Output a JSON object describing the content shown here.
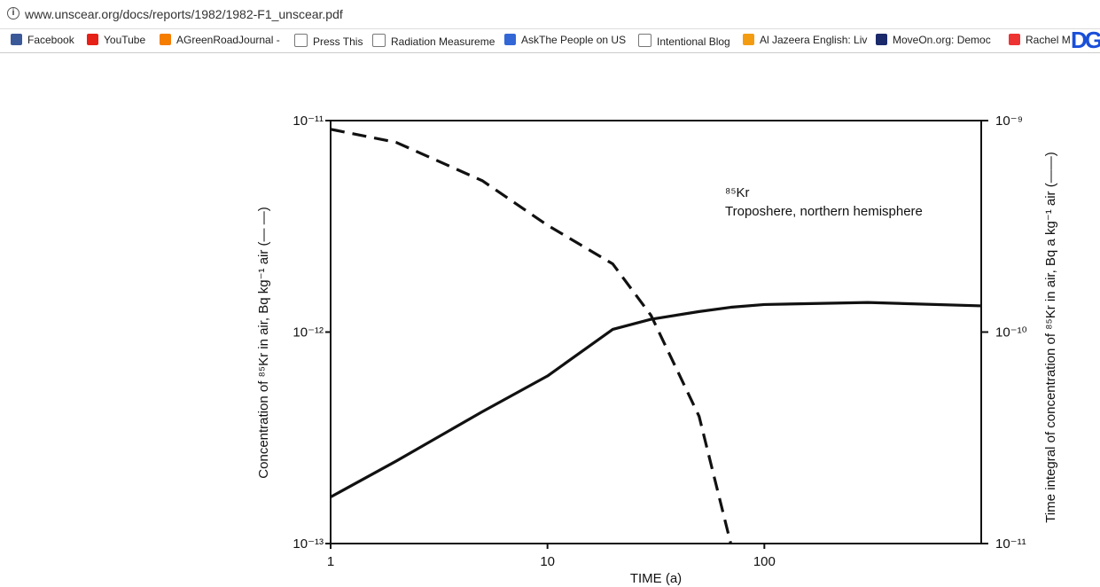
{
  "browser": {
    "url": "www.unscear.org/docs/reports/1982/1982-F1_unscear.pdf",
    "bookmarks": [
      "Facebook",
      "YouTube",
      "AGreenRoadJournal -",
      "Press This",
      "Radiation Measureme",
      "AskThe People on US",
      "Intentional Blog",
      "Al Jazeera English: Liv",
      "MoveOn.org: Democ",
      "Rachel M"
    ],
    "extension_label": "DG"
  },
  "chart_data": {
    "type": "line",
    "annotation": [
      "⁸⁵Kr",
      "Troposhere, northern hemisphere"
    ],
    "xlabel": "TIME (a)",
    "ylabel": "Concentration of ⁸⁵Kr in air, Bq kg⁻¹ air (— —)",
    "y2label": "Time integral of concentration of ⁸⁵Kr in air, Bq a kg⁻¹ air (——)",
    "xscale": "log",
    "yscale": "log",
    "y2scale": "log",
    "grid": false,
    "x": [
      1,
      2,
      5,
      10,
      20,
      30,
      50,
      70,
      100,
      300,
      1000
    ],
    "xlim": [
      1,
      1000
    ],
    "xticks": [
      1,
      10,
      100
    ],
    "ylim": [
      1e-13,
      1e-11
    ],
    "yticks": [
      {
        "value": 1e-13,
        "label": "10⁻¹³"
      },
      {
        "value": 1e-12,
        "label": "10⁻¹²"
      },
      {
        "value": 1e-11,
        "label": "10⁻¹¹"
      }
    ],
    "y2lim": [
      1e-11,
      1e-09
    ],
    "y2ticks": [
      {
        "value": 1e-11,
        "label": "10⁻¹¹"
      },
      {
        "value": 1e-10,
        "label": "10⁻¹⁰"
      },
      {
        "value": 1e-09,
        "label": "10⁻⁹"
      }
    ],
    "series": [
      {
        "color": "#111111",
        "style": "dashed",
        "values": [
          9.1e-12,
          7.9e-12,
          5.2e-12,
          3.2e-12,
          2.1e-12,
          1.2e-12,
          4e-13,
          1e-13,
          null,
          null,
          null
        ]
      },
      {
        "color": "#111111",
        "style": "solid",
        "axis": "y2",
        "values": [
          1.66e-11,
          2.45e-11,
          4.2e-11,
          6.2e-11,
          1.03e-10,
          1.15e-10,
          1.25e-10,
          1.31e-10,
          1.35e-10,
          1.38e-10,
          1.33e-10
        ]
      }
    ]
  }
}
